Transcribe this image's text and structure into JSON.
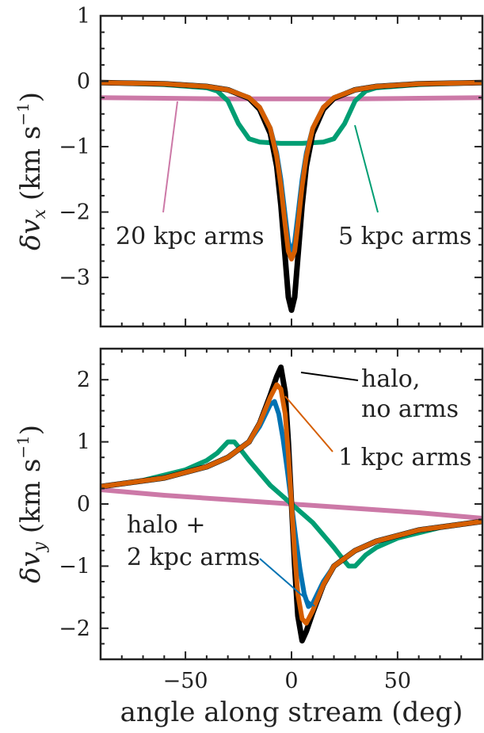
{
  "chart_data": [
    {
      "type": "line",
      "panel": "top",
      "ylabel": "δv_x (km s^-1)",
      "xlim": [
        -90,
        90
      ],
      "ylim": [
        -3.75,
        1.0
      ],
      "yticks": [
        1,
        0,
        -1,
        -2,
        -3
      ],
      "ytick_labels": [
        "1",
        "0",
        "−1",
        "−2",
        "−3"
      ],
      "series": [
        {
          "key": "pink",
          "color": "#cc79a7",
          "x": [
            -90,
            -60,
            -30,
            0,
            30,
            60,
            90
          ],
          "y": [
            -0.25,
            -0.26,
            -0.27,
            -0.27,
            -0.27,
            -0.26,
            -0.25
          ]
        },
        {
          "key": "green",
          "color": "#009e73",
          "x": [
            -90,
            -60,
            -40,
            -35,
            -30,
            -25,
            -20,
            -15,
            -10,
            -5,
            0,
            5,
            10,
            15,
            20,
            25,
            30,
            35,
            40,
            60,
            90
          ],
          "y": [
            -0.02,
            -0.05,
            -0.1,
            -0.15,
            -0.3,
            -0.65,
            -0.88,
            -0.93,
            -0.94,
            -0.95,
            -0.95,
            -0.95,
            -0.94,
            -0.93,
            -0.88,
            -0.65,
            -0.3,
            -0.15,
            -0.1,
            -0.05,
            -0.02
          ]
        },
        {
          "key": "black",
          "color": "#000000",
          "x": [
            -90,
            -60,
            -40,
            -30,
            -20,
            -15,
            -10,
            -7,
            -5,
            -3,
            -1.5,
            0,
            1.5,
            3,
            5,
            7,
            10,
            15,
            20,
            30,
            40,
            60,
            90
          ],
          "y": [
            -0.02,
            -0.04,
            -0.08,
            -0.13,
            -0.26,
            -0.43,
            -0.8,
            -1.3,
            -1.9,
            -2.7,
            -3.3,
            -3.5,
            -3.3,
            -2.7,
            -1.9,
            -1.3,
            -0.8,
            -0.43,
            -0.26,
            -0.13,
            -0.08,
            -0.04,
            -0.02
          ]
        },
        {
          "key": "blue",
          "color": "#0072b2",
          "x": [
            -90,
            -60,
            -40,
            -30,
            -20,
            -15,
            -10,
            -7,
            -5,
            -3,
            -1.5,
            0,
            1.5,
            3,
            5,
            7,
            10,
            15,
            20,
            30,
            40,
            60,
            90
          ],
          "y": [
            -0.02,
            -0.04,
            -0.08,
            -0.13,
            -0.25,
            -0.4,
            -0.72,
            -1.1,
            -1.5,
            -2.05,
            -2.45,
            -2.65,
            -2.45,
            -2.05,
            -1.5,
            -1.1,
            -0.72,
            -0.4,
            -0.25,
            -0.13,
            -0.08,
            -0.04,
            -0.02
          ]
        },
        {
          "key": "orange",
          "color": "#d55e00",
          "x": [
            -90,
            -60,
            -40,
            -30,
            -20,
            -15,
            -10,
            -7,
            -5,
            -3,
            -1.5,
            0,
            1.5,
            3,
            5,
            7,
            10,
            15,
            20,
            30,
            40,
            60,
            90
          ],
          "y": [
            -0.02,
            -0.04,
            -0.08,
            -0.13,
            -0.25,
            -0.4,
            -0.72,
            -1.15,
            -1.6,
            -2.2,
            -2.6,
            -2.72,
            -2.6,
            -2.2,
            -1.6,
            -1.15,
            -0.72,
            -0.4,
            -0.25,
            -0.13,
            -0.08,
            -0.04,
            -0.02
          ]
        }
      ],
      "annotations": [
        {
          "text": "20 kpc arms",
          "color": "#cc79a7"
        },
        {
          "text": "5 kpc arms",
          "color": "#009e73"
        }
      ]
    },
    {
      "type": "line",
      "panel": "bottom",
      "xlabel": "angle along stream (deg)",
      "ylabel": "δv_y (km s^-1)",
      "xlim": [
        -90,
        90
      ],
      "ylim": [
        -2.5,
        2.5
      ],
      "xticks": [
        -50,
        0,
        50
      ],
      "xtick_labels": [
        "−50",
        "0",
        "50"
      ],
      "yticks": [
        2,
        1,
        0,
        -1,
        -2
      ],
      "ytick_labels": [
        "2",
        "1",
        "0",
        "−1",
        "−2"
      ],
      "series": [
        {
          "key": "pink",
          "color": "#cc79a7",
          "x": [
            -90,
            -60,
            -30,
            0,
            30,
            60,
            90
          ],
          "y": [
            0.23,
            0.14,
            0.07,
            0.0,
            -0.07,
            -0.14,
            -0.23
          ]
        },
        {
          "key": "green",
          "color": "#009e73",
          "x": [
            -90,
            -70,
            -50,
            -40,
            -35,
            -30,
            -27,
            -25,
            -20,
            -15,
            -10,
            -5,
            0,
            5,
            10,
            15,
            20,
            25,
            27,
            30,
            35,
            40,
            50,
            70,
            90
          ],
          "y": [
            0.28,
            0.38,
            0.55,
            0.7,
            0.82,
            1.0,
            1.0,
            0.92,
            0.7,
            0.5,
            0.3,
            0.15,
            0.0,
            -0.15,
            -0.3,
            -0.5,
            -0.7,
            -0.92,
            -1.0,
            -1.0,
            -0.82,
            -0.7,
            -0.55,
            -0.38,
            -0.28
          ]
        },
        {
          "key": "black",
          "color": "#000000",
          "x": [
            -90,
            -60,
            -40,
            -30,
            -20,
            -15,
            -10,
            -7,
            -5,
            -3,
            -1.5,
            0,
            1.5,
            3,
            5,
            7,
            10,
            15,
            20,
            30,
            40,
            60,
            90
          ],
          "y": [
            0.28,
            0.42,
            0.6,
            0.75,
            1.0,
            1.3,
            1.75,
            2.05,
            2.2,
            1.8,
            1.0,
            0.0,
            -1.0,
            -1.8,
            -2.2,
            -2.05,
            -1.75,
            -1.3,
            -1.0,
            -0.75,
            -0.6,
            -0.42,
            -0.28
          ]
        },
        {
          "key": "blue",
          "color": "#0072b2",
          "x": [
            -90,
            -60,
            -40,
            -30,
            -20,
            -15,
            -10,
            -8,
            -6,
            -4,
            -2,
            0,
            2,
            4,
            6,
            8,
            10,
            15,
            20,
            30,
            40,
            60,
            90
          ],
          "y": [
            0.28,
            0.42,
            0.6,
            0.75,
            1.0,
            1.25,
            1.6,
            1.65,
            1.45,
            1.05,
            0.55,
            0.0,
            -0.55,
            -1.05,
            -1.45,
            -1.65,
            -1.6,
            -1.25,
            -1.0,
            -0.75,
            -0.6,
            -0.42,
            -0.28
          ]
        },
        {
          "key": "orange",
          "color": "#d55e00",
          "x": [
            -90,
            -60,
            -40,
            -30,
            -20,
            -15,
            -10,
            -7,
            -5,
            -3,
            -1.5,
            0,
            1.5,
            3,
            5,
            7,
            10,
            15,
            20,
            30,
            40,
            60,
            90
          ],
          "y": [
            0.28,
            0.42,
            0.6,
            0.75,
            1.0,
            1.3,
            1.72,
            1.92,
            1.85,
            1.45,
            0.8,
            0.0,
            -0.8,
            -1.45,
            -1.85,
            -1.92,
            -1.72,
            -1.3,
            -1.0,
            -0.75,
            -0.6,
            -0.42,
            -0.28
          ]
        }
      ],
      "annotations": [
        {
          "text": "halo,",
          "color": "#000000"
        },
        {
          "text": "no arms",
          "color": "#000000"
        },
        {
          "text": "1 kpc arms",
          "color": "#d55e00"
        },
        {
          "text": "halo +",
          "color": "#0072b2"
        },
        {
          "text": "2 kpc arms",
          "color": "#0072b2"
        }
      ]
    }
  ]
}
